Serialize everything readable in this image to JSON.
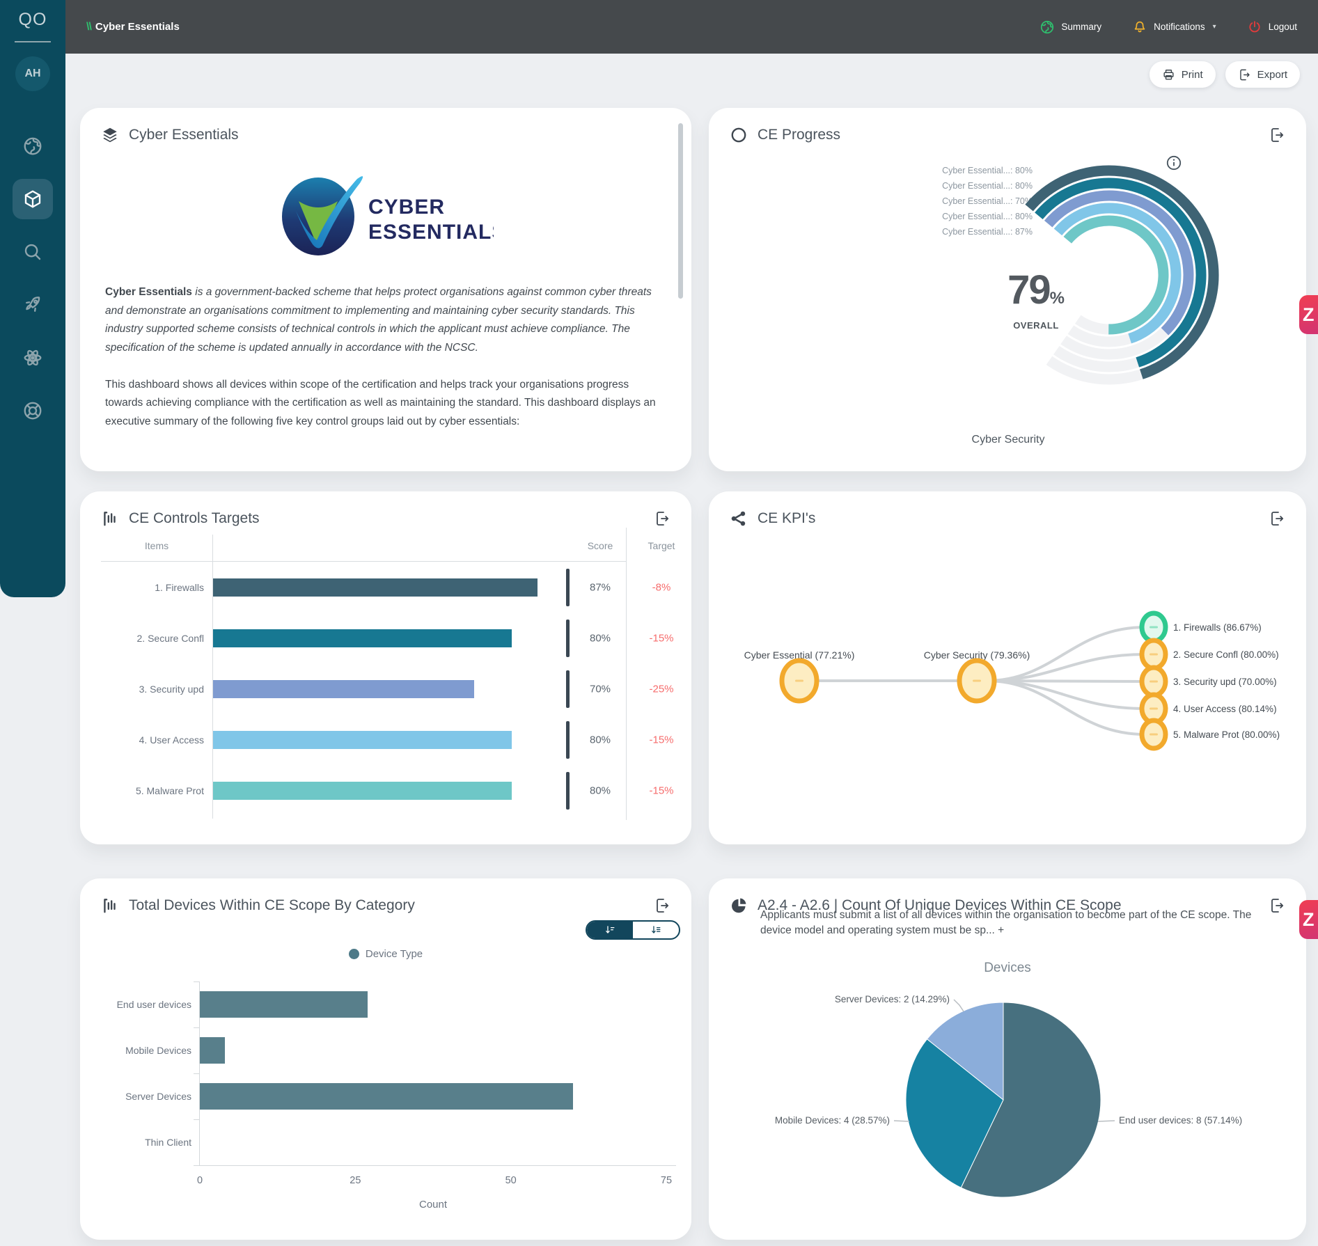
{
  "brand": {
    "logo": "QO",
    "avatar": "AH",
    "slashes": "\\\\"
  },
  "topbar": {
    "title": "Cyber Essentials",
    "summary": "Summary",
    "notifications": "Notifications",
    "logout": "Logout"
  },
  "actions": {
    "print": "Print",
    "export": "Export"
  },
  "widget": {
    "label": "Z"
  },
  "cards": {
    "about": {
      "title": "Cyber Essentials",
      "logo_line1": "CYBER",
      "logo_line2": "ESSENTIALS",
      "p1_bold": "Cyber Essentials",
      "p1_rest": " is a government-backed scheme that helps protect organisations against common cyber threats and demonstrate an organisations commitment to implementing and maintaining cyber security standards. This industry supported scheme consists of technical controls in which the applicant must achieve compliance. The specification of the scheme is updated annually in accordance with the NCSC.",
      "p2": "This dashboard shows all devices within scope of the certification and helps track your organisations progress towards achieving compliance with the certification as well as maintaining the standard. This dashboard displays an executive summary of the following five key control groups laid out by cyber essentials:"
    },
    "progress": {
      "title": "CE Progress",
      "overall_value": "79",
      "overall_pct": "%",
      "overall_label": "OVERALL",
      "axis_label": "Cyber Security"
    },
    "controls": {
      "title": "CE Controls Targets",
      "col_items": "Items",
      "col_score": "Score",
      "col_target": "Target"
    },
    "kpis": {
      "title": "CE KPI's"
    },
    "devices_category": {
      "title": "Total Devices Within CE Scope By Category",
      "legend": "Device Type",
      "xlabel": "Count"
    },
    "unique_devices": {
      "title": "A2.4 - A2.6 | Count Of Unique Devices Within CE Scope",
      "subtitle": "Applicants must submit a list of all devices within the organisation to become part of the CE scope. The device model and operating system must be sp... +",
      "chart_title": "Devices"
    }
  },
  "chart_data": [
    {
      "type": "radial_bar",
      "title": "CE Progress",
      "max": 100,
      "legend_position": "left",
      "rings": [
        {
          "label": "Cyber Essential...: 80%",
          "value": 80,
          "color": "#3e6374"
        },
        {
          "label": "Cyber Essential...: 80%",
          "value": 80,
          "color": "#177892"
        },
        {
          "label": "Cyber Essential...: 70%",
          "value": 70,
          "color": "#7f9bd0"
        },
        {
          "label": "Cyber Essential...: 80%",
          "value": 80,
          "color": "#80c6e8"
        },
        {
          "label": "Cyber Essential...: 87%",
          "value": 87,
          "color": "#6ec7c7"
        }
      ],
      "center_value": 79,
      "center_label": "OVERALL",
      "category": "Cyber Security"
    },
    {
      "type": "bullet_bar",
      "title": "CE Controls Targets",
      "max": 100,
      "target_pos": 95,
      "rows": [
        {
          "item": "1. Firewalls",
          "score": 87,
          "score_label": "87%",
          "target_label": "-8%",
          "color": "#3e6374"
        },
        {
          "item": "2. Secure Confl",
          "score": 80,
          "score_label": "80%",
          "target_label": "-15%",
          "color": "#177892"
        },
        {
          "item": "3. Security upd",
          "score": 70,
          "score_label": "70%",
          "target_label": "-25%",
          "color": "#7f9bd0"
        },
        {
          "item": "4. User Access",
          "score": 80,
          "score_label": "80%",
          "target_label": "-15%",
          "color": "#80c6e8"
        },
        {
          "item": "5. Malware Prot",
          "score": 80,
          "score_label": "80%",
          "target_label": "-15%",
          "color": "#6ec7c7"
        }
      ]
    },
    {
      "type": "network",
      "title": "CE KPI's",
      "root": {
        "label": "Cyber Essential (77.21%)",
        "color": "#f2a92c"
      },
      "parent": {
        "label": "Cyber Security (79.36%)",
        "color": "#f2a92c"
      },
      "leaves": [
        {
          "label": "1. Firewalls (86.67%)",
          "color": "#2fc98f"
        },
        {
          "label": "2. Secure Confl (80.00%)",
          "color": "#f2a92c"
        },
        {
          "label": "3. Security upd (70.00%)",
          "color": "#f2a92c"
        },
        {
          "label": "4. User Access (80.14%)",
          "color": "#f2a92c"
        },
        {
          "label": "5. Malware Prot (80.00%)",
          "color": "#f2a92c"
        }
      ]
    },
    {
      "type": "bar",
      "title": "Total Devices Within CE Scope By Category",
      "categories": [
        "End user devices",
        "Mobile Devices",
        "Server Devices",
        "Thin Client"
      ],
      "values": [
        27,
        4,
        60,
        0
      ],
      "xticks": [
        0,
        25,
        50,
        75
      ],
      "xlim": [
        0,
        75
      ],
      "xlabel": "Count",
      "legend": "Device Type",
      "bar_color": "#587f8b",
      "grid": false
    },
    {
      "type": "pie",
      "title": "Devices",
      "slices": [
        {
          "label": "End user devices: 8 (57.14%)",
          "value": 8,
          "pct": 57.14,
          "color": "#47707f"
        },
        {
          "label": "Mobile Devices: 4 (28.57%)",
          "value": 4,
          "pct": 28.57,
          "color": "#1682a2"
        },
        {
          "label": "Server Devices: 2 (14.29%)",
          "value": 2,
          "pct": 14.29,
          "color": "#8badda"
        }
      ]
    }
  ]
}
